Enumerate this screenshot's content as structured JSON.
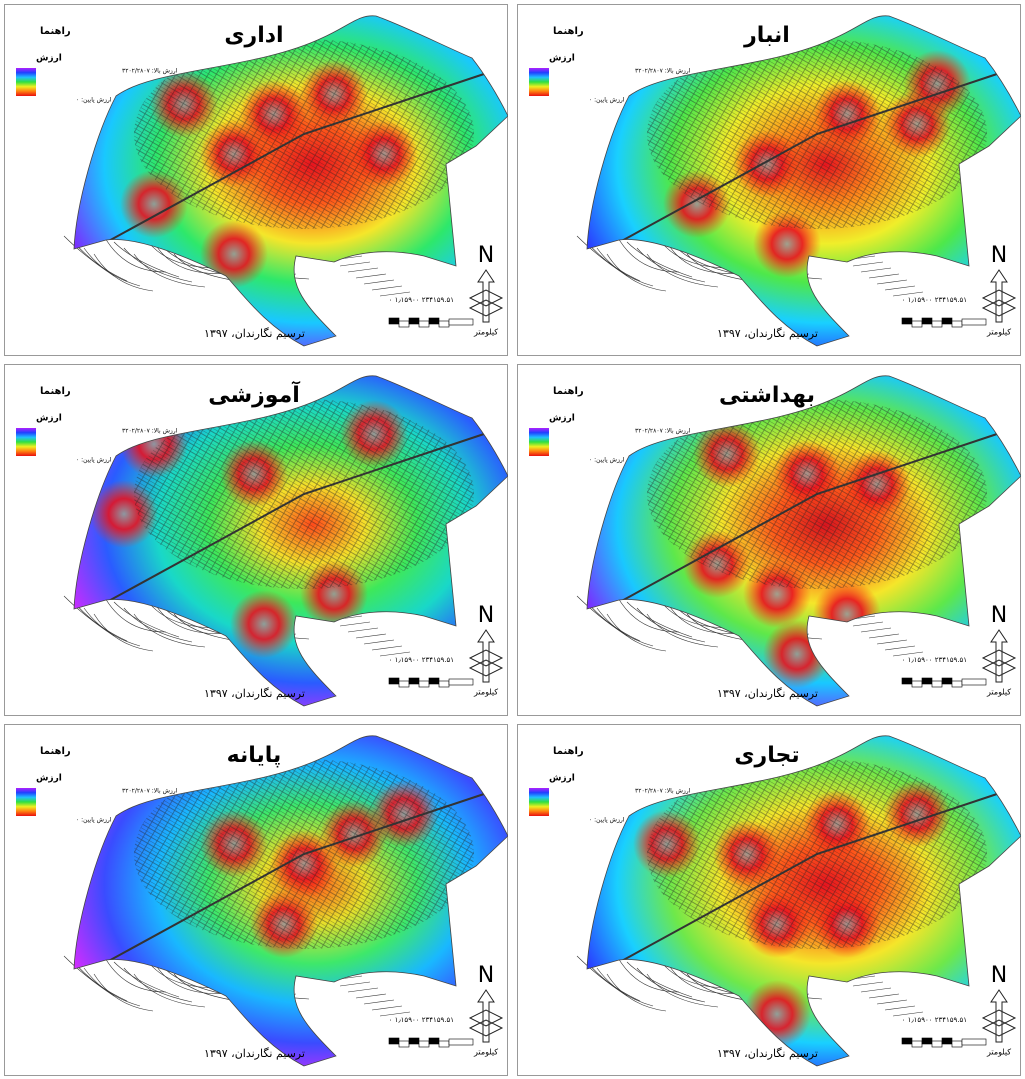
{
  "panels": [
    {
      "title": "اداری",
      "legend_title": "راهنما",
      "legend_label": "ارزش",
      "legend_high": "ارزش بالا: ۳۲۰۲/۲۸۰۷",
      "legend_low": "ارزش پایین: ۰",
      "scale_numbers": "۰ ۱٫۱۵۹۰۰ ۲۳۴۱۵۹.۵۱",
      "scale_unit": "کیلومتر",
      "north": "N",
      "credit": "ترسیم نگارندان، ۱۳۹۷"
    },
    {
      "title": "انبار",
      "legend_title": "راهنما",
      "legend_label": "ارزش",
      "legend_high": "ارزش بالا: ۳۲۰۲/۲۸۰۷",
      "legend_low": "ارزش پایین: ۰",
      "scale_numbers": "۰ ۱٫۱۵۹۰۰ ۲۳۴۱۵۹.۵۱",
      "scale_unit": "کیلومتر",
      "north": "N",
      "credit": "ترسیم نگارندان، ۱۳۹۷"
    },
    {
      "title": "آموزشی",
      "legend_title": "راهنما",
      "legend_label": "ارزش",
      "legend_high": "ارزش بالا: ۳۲۰۲/۲۸۰۷",
      "legend_low": "ارزش پایین: ۰",
      "scale_numbers": "۰ ۱٫۱۵۹۰۰ ۲۳۴۱۵۹.۵۱",
      "scale_unit": "کیلومتر",
      "north": "N",
      "credit": "ترسیم نگارندان، ۱۳۹۷"
    },
    {
      "title": "بهداشتی",
      "legend_title": "راهنما",
      "legend_label": "ارزش",
      "legend_high": "ارزش بالا: ۳۲۰۲/۲۸۰۷",
      "legend_low": "ارزش پایین: ۰",
      "scale_numbers": "۰ ۱٫۱۵۹۰۰ ۲۳۴۱۵۹.۵۱",
      "scale_unit": "کیلومتر",
      "north": "N",
      "credit": "ترسیم نگارندان، ۱۳۹۷"
    },
    {
      "title": "پایانه",
      "legend_title": "راهنما",
      "legend_label": "ارزش",
      "legend_high": "ارزش بالا: ۳۲۰۲/۲۸۰۷",
      "legend_low": "ارزش پایین: ۰",
      "scale_numbers": "۰ ۱٫۱۵۹۰۰ ۲۳۴۱۵۹.۵۱",
      "scale_unit": "کیلومتر",
      "north": "N",
      "credit": "ترسیم نگارندان، ۱۳۹۷"
    },
    {
      "title": "تجاری",
      "legend_title": "راهنما",
      "legend_label": "ارزش",
      "legend_high": "ارزش بالا: ۳۲۰۲/۲۸۰۷",
      "legend_low": "ارزش پایین: ۰",
      "scale_numbers": "۰ ۱٫۱۵۹۰۰ ۲۳۴۱۵۹.۵۱",
      "scale_unit": "کیلومتر",
      "north": "N",
      "credit": "ترسیم نگارندان، ۱۳۹۷"
    }
  ]
}
